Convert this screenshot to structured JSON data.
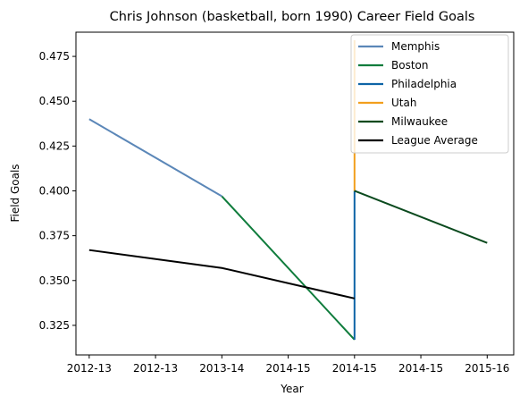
{
  "chart_data": {
    "type": "line",
    "title": "Chris Johnson (basketball, born 1990) Career Field Goals",
    "xlabel": "Year",
    "ylabel": "Field Goals",
    "x_tick_labels": [
      "2012-13",
      "2012-13",
      "2013-14",
      "2014-15",
      "2014-15",
      "2014-15",
      "2015-16"
    ],
    "xlim": [
      -0.1,
      3.2
    ],
    "ylim": [
      0.3085,
      0.4885
    ],
    "y_ticks": [
      0.325,
      0.35,
      0.375,
      0.4,
      0.425,
      0.45,
      0.475
    ],
    "y_tick_labels": [
      "0.325",
      "0.350",
      "0.375",
      "0.400",
      "0.425",
      "0.450",
      "0.475"
    ],
    "grid": false,
    "legend_position": "top-right",
    "series": [
      {
        "name": "Memphis",
        "color": "#5b87b8",
        "points": [
          [
            0,
            0.44
          ],
          [
            1,
            0.397
          ]
        ]
      },
      {
        "name": "Boston",
        "color": "#0f7c3c",
        "points": [
          [
            1,
            0.397
          ],
          [
            2,
            0.317
          ]
        ]
      },
      {
        "name": "Philadelphia",
        "color": "#0d64a6",
        "points": [
          [
            2,
            0.317
          ],
          [
            2,
            0.4
          ]
        ]
      },
      {
        "name": "Utah",
        "color": "#f29f1d",
        "points": [
          [
            2,
            0.4
          ],
          [
            2,
            0.484
          ]
        ]
      },
      {
        "name": "Milwaukee",
        "color": "#0b4a1e",
        "points": [
          [
            2,
            0.4
          ],
          [
            3,
            0.371
          ]
        ]
      },
      {
        "name": "League Average",
        "color": "#000000",
        "points": [
          [
            0,
            0.367
          ],
          [
            1,
            0.357
          ],
          [
            2,
            0.34
          ]
        ]
      }
    ]
  }
}
